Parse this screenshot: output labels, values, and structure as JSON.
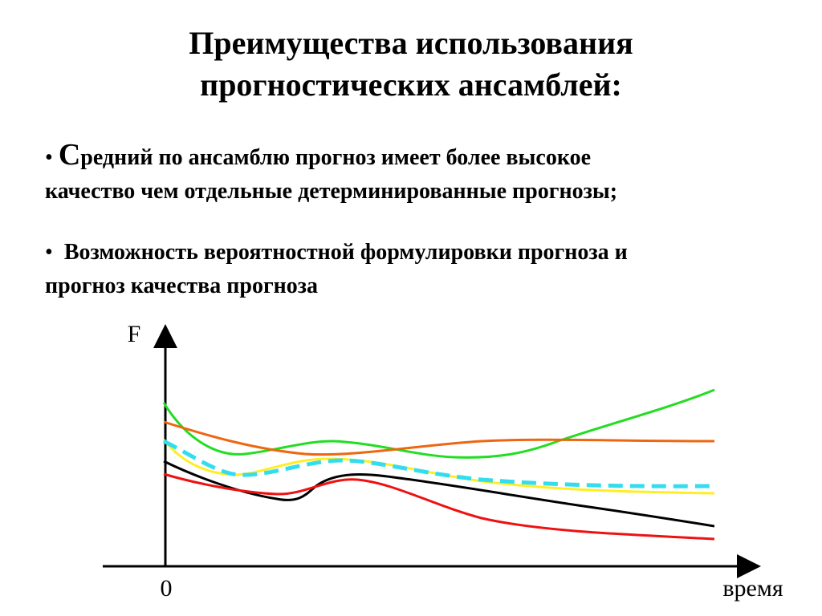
{
  "title": {
    "line1": "Преимущества использования",
    "line2": "прогностических ансамблей:"
  },
  "bullets": [
    {
      "marker": "•",
      "cap": "С",
      "line1_rest": "редний по ансамблю прогноз имеет более высокое",
      "line2": "качество чем отдельные детерминированные прогнозы;"
    },
    {
      "marker": "•",
      "line1": "Возможность вероятностной формулировки прогноза и",
      "line2": "прогноз качества прогноза"
    }
  ],
  "diagram": {
    "y_axis_label": "F",
    "origin_label": "0",
    "x_axis_label": "время",
    "curves": [
      {
        "id": "green",
        "color": "#22dd22",
        "style": "solid"
      },
      {
        "id": "orange",
        "color": "#ee6611",
        "style": "solid"
      },
      {
        "id": "yellow",
        "color": "#ffee22",
        "style": "solid"
      },
      {
        "id": "ensemble-mean",
        "color": "#33ddee",
        "style": "dashed"
      },
      {
        "id": "black",
        "color": "#000000",
        "style": "solid"
      },
      {
        "id": "red",
        "color": "#ee1111",
        "style": "solid"
      }
    ]
  }
}
